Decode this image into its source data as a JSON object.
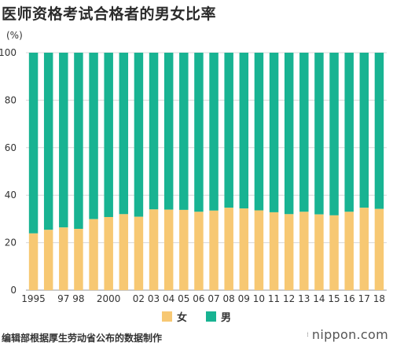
{
  "header": {
    "title": "医师资格考试合格者的男女比率",
    "unit": "(%)"
  },
  "legend": {
    "female_label": "女",
    "male_label": "男"
  },
  "colors": {
    "female": "#f7c873",
    "male": "#18b392",
    "grid": "#d8d8d8"
  },
  "footer": {
    "source": "编辑部根据厚生劳动省公布的数据制作",
    "brand": "nippon.com"
  },
  "chart_data": {
    "type": "bar",
    "stacked": true,
    "percent": true,
    "categories": [
      "1995",
      "1996",
      "1997",
      "1998",
      "1999",
      "2000",
      "2001",
      "2002",
      "2003",
      "2004",
      "2005",
      "2006",
      "2007",
      "2008",
      "2009",
      "2010",
      "2011",
      "2012",
      "2013",
      "2014",
      "2015",
      "2016",
      "2017",
      "2018"
    ],
    "tick_labels": [
      "1995",
      "",
      "97",
      "98",
      "",
      "2000",
      "",
      "02",
      "03",
      "04",
      "05",
      "06",
      "07",
      "08",
      "09",
      "10",
      "11",
      "12",
      "13",
      "14",
      "15",
      "16",
      "17",
      "18"
    ],
    "series": [
      {
        "name": "女",
        "values": [
          23.9,
          25.4,
          26.4,
          25.8,
          29.9,
          30.8,
          32.0,
          30.9,
          34.0,
          33.9,
          33.8,
          33.0,
          33.5,
          34.7,
          34.4,
          33.6,
          32.8,
          32.0,
          33.0,
          31.9,
          31.5,
          33.0,
          34.7,
          34.2
        ]
      },
      {
        "name": "男",
        "values": [
          76.1,
          74.6,
          73.6,
          74.2,
          70.1,
          69.2,
          68.0,
          69.1,
          66.0,
          66.1,
          66.2,
          67.0,
          66.5,
          65.3,
          65.6,
          66.4,
          67.2,
          68.0,
          67.0,
          68.1,
          68.5,
          67.0,
          65.3,
          65.8
        ]
      }
    ],
    "ylim": [
      0,
      100
    ],
    "yticks": [
      0,
      20,
      40,
      60,
      80,
      100
    ],
    "grid": true,
    "legend_position": "bottom"
  }
}
